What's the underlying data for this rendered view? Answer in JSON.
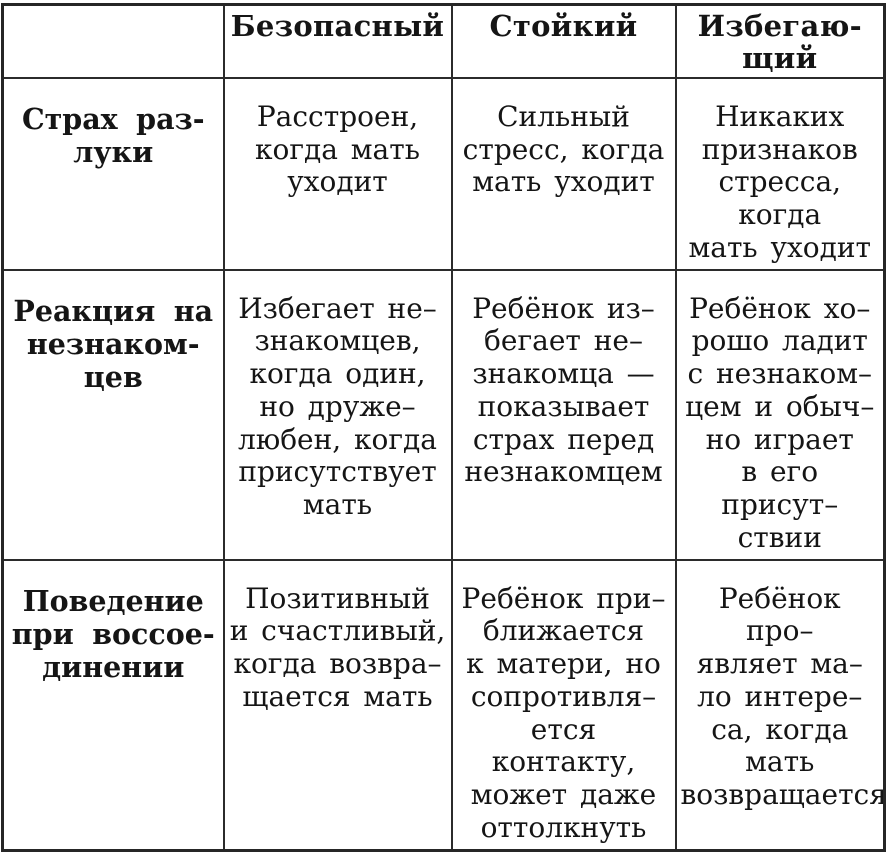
{
  "table": {
    "columns": [
      "",
      "Безопасный",
      "Стойкий",
      "Избегаю-\nщий"
    ],
    "rows": [
      {
        "header": "Страх раз-\nлуки",
        "cells": [
          "Расстроен,\nкогда мать\nуходит",
          "Сильный\nстресс, когда\nмать уходит",
          "Никаких\nпризнаков\nстресса, когда\nмать уходит"
        ]
      },
      {
        "header": "Реакция на\nнезнаком-\nцев",
        "cells": [
          "Избегает не–\nзнакомцев,\nкогда один,\nно друже–\nлюбен, когда\nприсутствует\nмать",
          "Ребёнок из–\nбегает не–\nзнакомца —\nпоказывает\nстрах перед\nнезнакомцем",
          "Ребёнок хо–\nрошо ладит\nс незнаком–\nцем и обыч–\nно играет\nв его присут–\nствии"
        ]
      },
      {
        "header": "Поведение\nпри воссое-\nдинении",
        "cells": [
          "Позитивный\nи счастливый,\nкогда возвра–\nщается мать",
          "Ребёнок при–\nближается\nк матери, но\nсопротивля–\nется контакту,\nможет даже\nоттолкнуть",
          "Ребёнок про–\nявляет ма–\nло интере–\nса, когда мать\nвозвращается"
        ]
      }
    ],
    "colors": {
      "text": "#151515",
      "border": "#2b2b2b",
      "background": "#ffffff"
    }
  }
}
